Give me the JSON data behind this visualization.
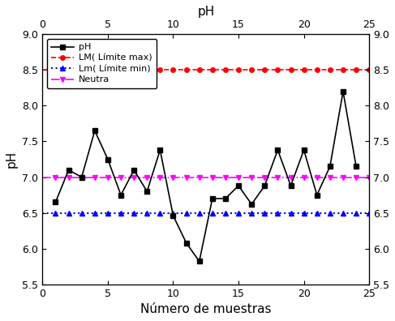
{
  "x": [
    1,
    2,
    3,
    4,
    5,
    6,
    7,
    8,
    9,
    10,
    11,
    12,
    13,
    14,
    15,
    16,
    17,
    18,
    19,
    20,
    21,
    22,
    23,
    24
  ],
  "ph_values": [
    6.65,
    7.1,
    7.0,
    7.65,
    7.25,
    6.75,
    7.1,
    6.8,
    7.38,
    6.46,
    6.08,
    5.82,
    6.7,
    6.7,
    6.88,
    6.62,
    6.88,
    7.38,
    6.88,
    7.38,
    6.75,
    7.15,
    8.2,
    7.15
  ],
  "lm_max": 8.5,
  "lm_min": 6.5,
  "neutra": 7.0,
  "xlim": [
    0,
    25
  ],
  "ylim": [
    5.5,
    9.0
  ],
  "xlabel": "Número de muestras",
  "ylabel": "pH",
  "top_xlabel": "pH",
  "yticks": [
    5.5,
    6.0,
    6.5,
    7.0,
    7.5,
    8.0,
    8.5,
    9.0
  ],
  "xticks": [
    0,
    5,
    10,
    15,
    20,
    25
  ],
  "legend_labels": [
    "pH",
    "LM( Límite max)",
    "Lm( Límite min)",
    "Neutra"
  ],
  "ph_color": "#000000",
  "lm_max_color": "#ff0000",
  "lm_min_color": "#0000ff",
  "neutra_color": "#ff00ff",
  "label_fontsize": 11,
  "tick_fontsize": 9,
  "legend_fontsize": 8,
  "lm_max_marker_x": [
    1,
    2,
    3,
    4,
    5,
    6,
    7,
    8,
    9,
    10,
    11,
    12,
    13,
    14,
    15,
    16,
    17,
    18,
    19,
    20,
    21,
    22,
    23,
    24,
    25
  ],
  "lm_min_marker_x": [
    1,
    2,
    3,
    4,
    5,
    6,
    7,
    8,
    9,
    10,
    11,
    12,
    13,
    14,
    15,
    16,
    17,
    18,
    19,
    20,
    21,
    22,
    23,
    24,
    25
  ],
  "neutra_marker_x": [
    1,
    2,
    3,
    4,
    5,
    6,
    7,
    8,
    9,
    10,
    11,
    12,
    13,
    14,
    15,
    16,
    17,
    18,
    19,
    20,
    21,
    22,
    23,
    24,
    25
  ]
}
